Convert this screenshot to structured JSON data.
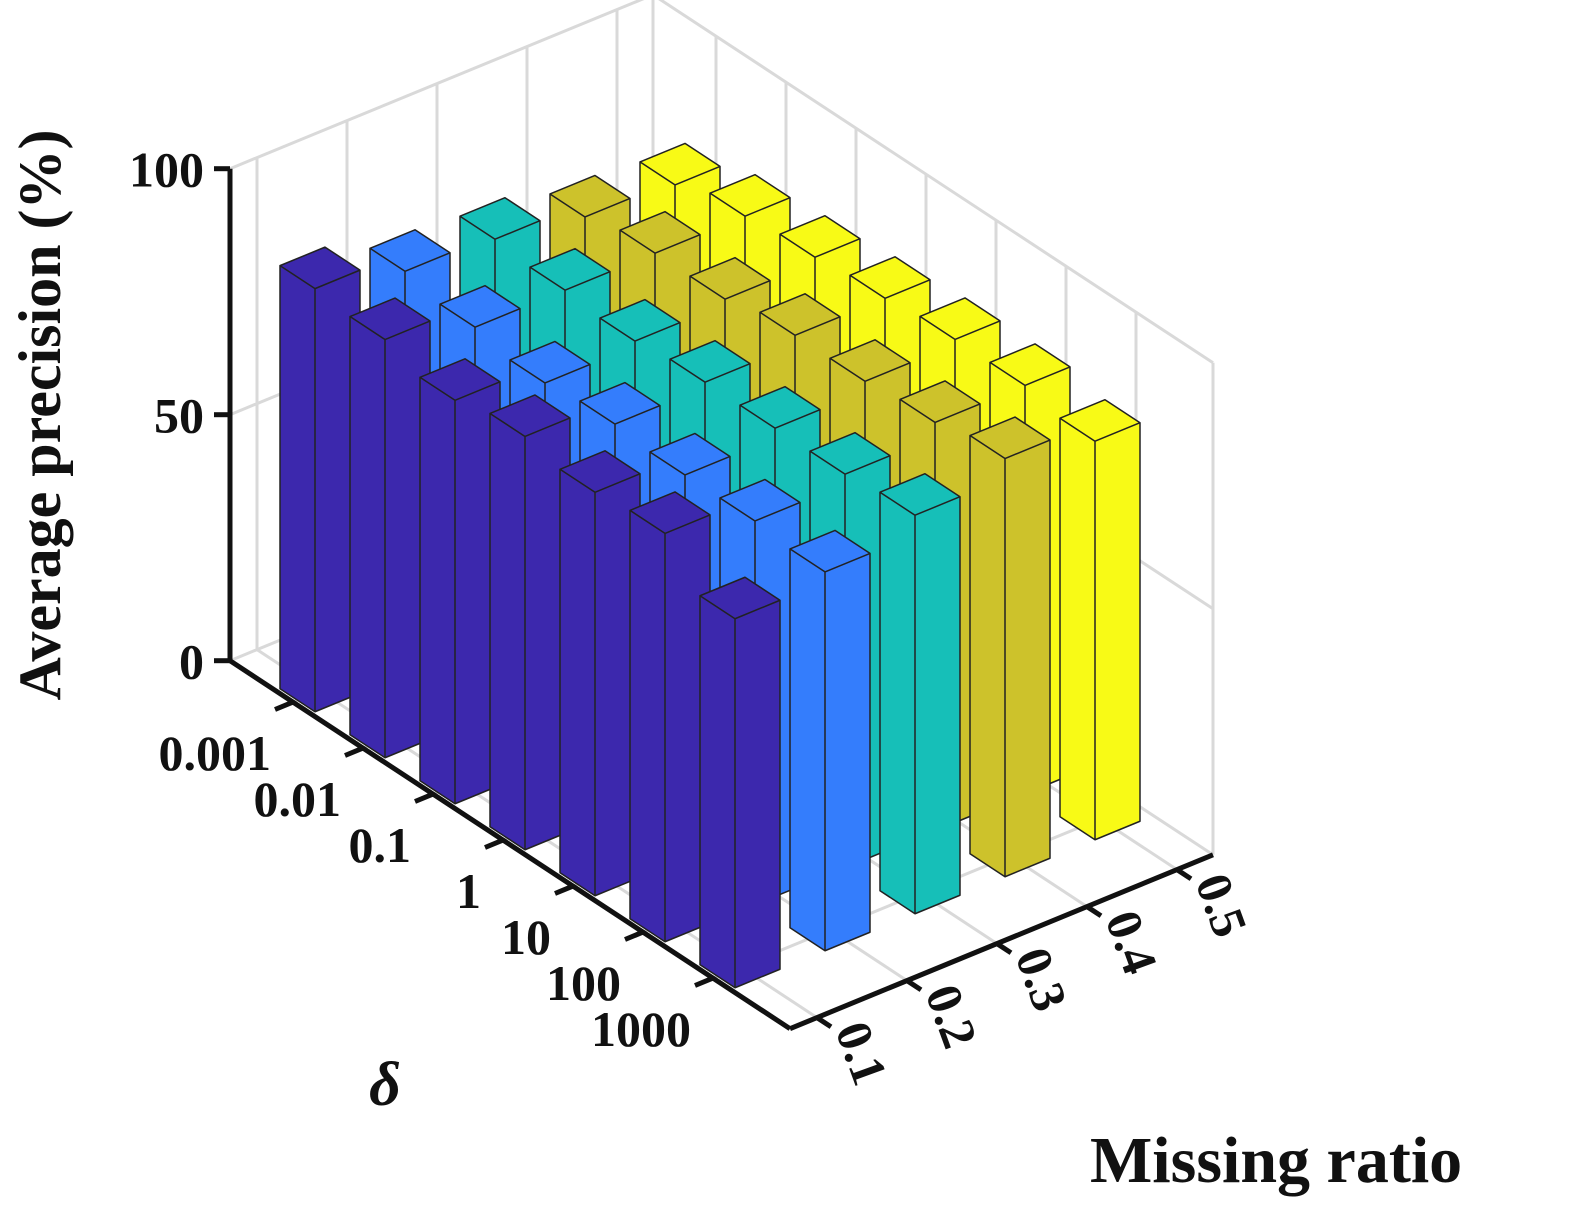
{
  "chart_data": {
    "type": "bar3",
    "x_label": "δ",
    "y_label": "Missing ratio",
    "z_label": "Average precision (%)",
    "categories": [
      "0.001",
      "0.01",
      "0.1",
      "1",
      "10",
      "100",
      "1000"
    ],
    "series": [
      {
        "name": "0.1",
        "color": "#3c28ad",
        "values": [
          86,
          85,
          82,
          84,
          82,
          83,
          75
        ]
      },
      {
        "name": "0.2",
        "color": "#347dfc",
        "values": [
          82,
          80,
          78,
          79,
          78,
          78,
          77
        ]
      },
      {
        "name": "0.3",
        "color": "#16bfb8",
        "values": [
          81,
          80,
          79,
          80,
          80,
          80,
          81
        ]
      },
      {
        "name": "0.4",
        "color": "#cdc22b",
        "values": [
          78,
          80,
          80,
          82,
          82,
          83,
          85
        ]
      },
      {
        "name": "0.5",
        "color": "#f8fa16",
        "values": [
          77,
          80,
          81,
          82,
          83,
          83,
          81
        ]
      }
    ],
    "zlim": [
      0,
      100
    ],
    "zticks": [
      0,
      50,
      100
    ],
    "grid": true
  }
}
